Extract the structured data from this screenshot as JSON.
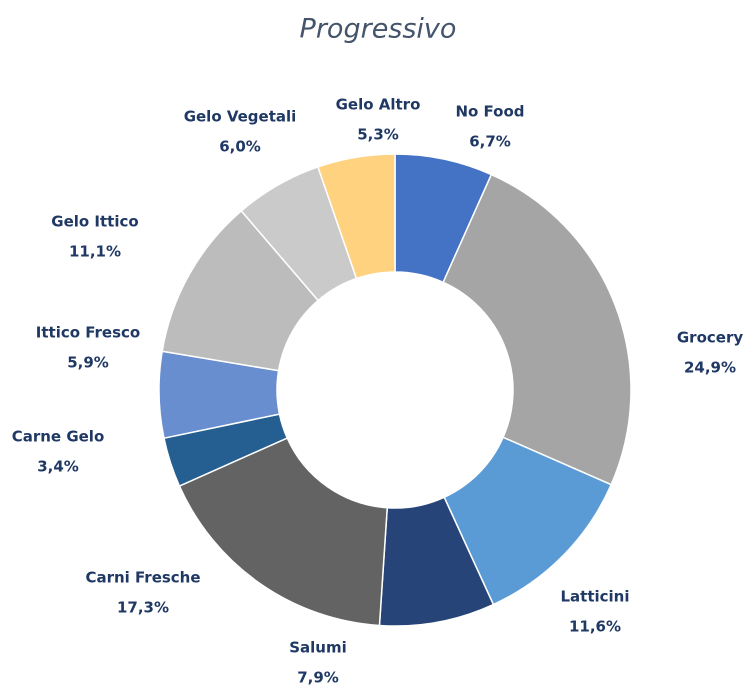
{
  "chart_data": {
    "type": "donut",
    "title": "Progressivo",
    "categories": [
      "No Food",
      "Grocery",
      "Latticini",
      "Salumi",
      "Carni Fresche",
      "Carne Gelo",
      "Ittico Fresco",
      "Gelo Ittico",
      "Gelo Vegetali",
      "Gelo Altro"
    ],
    "values": [
      6.7,
      24.9,
      11.6,
      7.9,
      17.3,
      3.4,
      5.9,
      11.1,
      6.0,
      5.3
    ],
    "value_labels": [
      "6,7%",
      "24,9%",
      "11,6%",
      "7,9%",
      "17,3%",
      "3,4%",
      "5,9%",
      "11,1%",
      "6,0%",
      "5,3%"
    ],
    "colors": [
      "#4472c4",
      "#a5a5a5",
      "#5b9bd5",
      "#264478",
      "#636363",
      "#255e91",
      "#698ed0",
      "#bcbcbc",
      "#cacaca",
      "#ffd280"
    ]
  }
}
